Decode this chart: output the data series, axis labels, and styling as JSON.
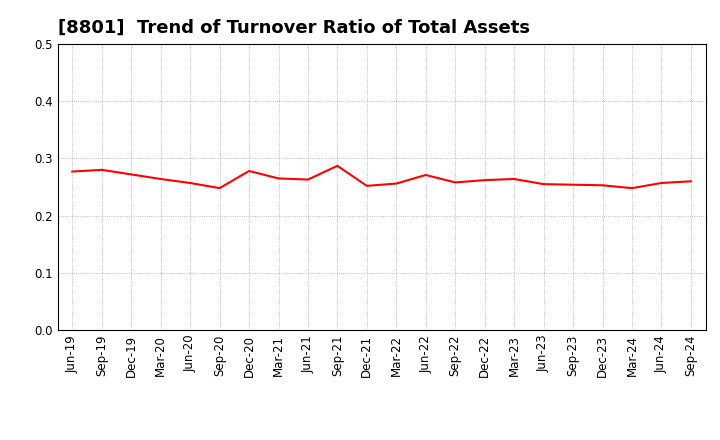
{
  "title": "[8801]  Trend of Turnover Ratio of Total Assets",
  "x_labels": [
    "Jun-19",
    "Sep-19",
    "Dec-19",
    "Mar-20",
    "Jun-20",
    "Sep-20",
    "Dec-20",
    "Mar-21",
    "Jun-21",
    "Sep-21",
    "Dec-21",
    "Mar-22",
    "Jun-22",
    "Sep-22",
    "Dec-22",
    "Mar-23",
    "Jun-23",
    "Sep-23",
    "Dec-23",
    "Mar-24",
    "Jun-24",
    "Sep-24"
  ],
  "y_values": [
    0.277,
    0.28,
    0.272,
    0.264,
    0.257,
    0.248,
    0.278,
    0.265,
    0.263,
    0.287,
    0.252,
    0.256,
    0.271,
    0.258,
    0.262,
    0.264,
    0.255,
    0.254,
    0.253,
    0.248,
    0.257,
    0.26
  ],
  "line_color": "#FF0000",
  "ylim": [
    0.0,
    0.5
  ],
  "yticks": [
    0.0,
    0.1,
    0.2,
    0.3,
    0.4,
    0.5
  ],
  "background_color": "#FFFFFF",
  "grid_color": "#AAAAAA",
  "title_fontsize": 13,
  "tick_fontsize": 8.5,
  "linewidth": 1.5
}
